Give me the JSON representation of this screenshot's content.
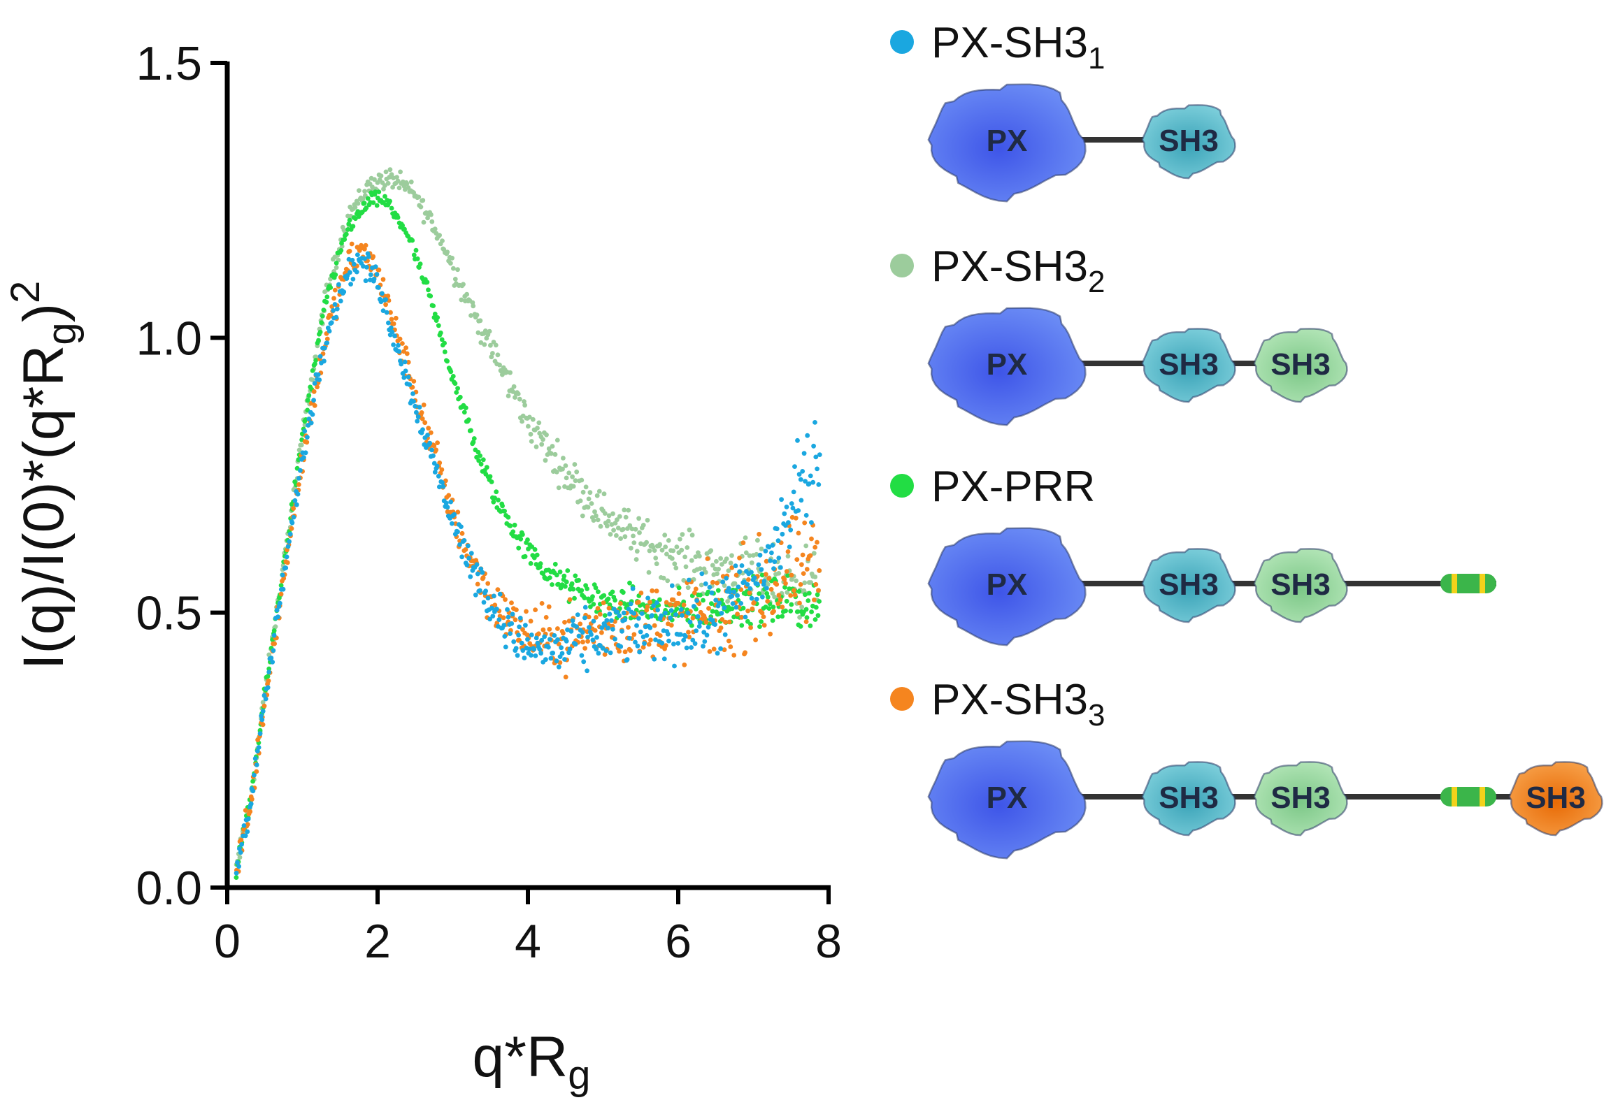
{
  "chart_data": {
    "type": "scatter",
    "title": "",
    "xlabel": "q*R",
    "xlabel_sub": "g",
    "ylabel": "I(q)/I(0)*(q*R",
    "ylabel_sub": "g",
    "ylabel_tail": ")",
    "ylabel_sup": "2",
    "xlim": [
      0,
      8
    ],
    "ylim": [
      0,
      1.5
    ],
    "xticks": [
      "0",
      "2",
      "4",
      "6",
      "8"
    ],
    "yticks": [
      "0.0",
      "0.5",
      "1.0",
      "1.5"
    ],
    "series": [
      {
        "name": "PX-SH3",
        "sub": "1",
        "color": "#1aa7e0",
        "noise": 0.022,
        "x": [
          0.1,
          0.3,
          0.5,
          0.7,
          1.0,
          1.3,
          1.6,
          1.8,
          2.0,
          2.2,
          2.5,
          2.8,
          3.0,
          3.2,
          3.5,
          3.8,
          4.0,
          4.3,
          4.6,
          5.0,
          5.5,
          6.0,
          6.5,
          7.0,
          7.3,
          7.6,
          7.9
        ],
        "y": [
          0.02,
          0.15,
          0.34,
          0.52,
          0.78,
          1.0,
          1.12,
          1.14,
          1.1,
          1.01,
          0.88,
          0.75,
          0.67,
          0.6,
          0.52,
          0.46,
          0.44,
          0.43,
          0.44,
          0.46,
          0.47,
          0.48,
          0.49,
          0.55,
          0.62,
          0.72,
          0.8
        ]
      },
      {
        "name": "PX-SH3",
        "sub": "2",
        "color": "#9ccc9c",
        "noise": 0.016,
        "x": [
          0.1,
          0.3,
          0.5,
          0.7,
          1.0,
          1.3,
          1.6,
          1.9,
          2.2,
          2.5,
          2.8,
          3.1,
          3.4,
          3.7,
          4.0,
          4.3,
          4.6,
          5.0,
          5.5,
          6.0,
          6.5,
          7.0,
          7.5,
          7.9
        ],
        "y": [
          0.02,
          0.15,
          0.35,
          0.54,
          0.82,
          1.07,
          1.22,
          1.28,
          1.29,
          1.26,
          1.19,
          1.1,
          1.01,
          0.93,
          0.85,
          0.79,
          0.74,
          0.68,
          0.63,
          0.6,
          0.58,
          0.57,
          0.56,
          0.55
        ]
      },
      {
        "name": "PX-PRR",
        "sub": "",
        "color": "#22dd44",
        "noise": 0.012,
        "x": [
          0.1,
          0.3,
          0.5,
          0.7,
          1.0,
          1.3,
          1.6,
          1.9,
          2.1,
          2.4,
          2.7,
          3.0,
          3.3,
          3.6,
          3.9,
          4.2,
          4.5,
          5.0,
          5.5,
          6.0,
          6.5,
          7.0,
          7.5,
          7.9
        ],
        "y": [
          0.02,
          0.15,
          0.35,
          0.54,
          0.82,
          1.06,
          1.2,
          1.25,
          1.25,
          1.19,
          1.07,
          0.93,
          0.8,
          0.7,
          0.63,
          0.58,
          0.55,
          0.52,
          0.51,
          0.5,
          0.51,
          0.52,
          0.52,
          0.51
        ]
      },
      {
        "name": "PX-SH3",
        "sub": "3",
        "color": "#f5851f",
        "noise": 0.026,
        "x": [
          0.1,
          0.3,
          0.5,
          0.7,
          1.0,
          1.3,
          1.6,
          1.8,
          2.0,
          2.2,
          2.5,
          2.8,
          3.0,
          3.2,
          3.5,
          3.8,
          4.0,
          4.3,
          4.6,
          5.0,
          5.5,
          6.0,
          6.5,
          7.0,
          7.3,
          7.6,
          7.9
        ],
        "y": [
          0.02,
          0.15,
          0.34,
          0.52,
          0.78,
          1.0,
          1.13,
          1.16,
          1.12,
          1.03,
          0.9,
          0.77,
          0.68,
          0.61,
          0.53,
          0.48,
          0.46,
          0.45,
          0.46,
          0.47,
          0.48,
          0.49,
          0.5,
          0.53,
          0.55,
          0.57,
          0.57
        ]
      }
    ],
    "legend_position": "right"
  },
  "schematics": [
    {
      "domains": [
        {
          "label": "PX",
          "color": "#4a6cf0"
        },
        {
          "label": "SH3",
          "color": "#4fb8c8"
        }
      ],
      "prr": false,
      "sh3_3": false
    },
    {
      "domains": [
        {
          "label": "PX",
          "color": "#4a6cf0"
        },
        {
          "label": "SH3",
          "color": "#4fb8c8"
        },
        {
          "label": "SH3",
          "color": "#93d39a"
        }
      ],
      "prr": false,
      "sh3_3": false
    },
    {
      "domains": [
        {
          "label": "PX",
          "color": "#4a6cf0"
        },
        {
          "label": "SH3",
          "color": "#4fb8c8"
        },
        {
          "label": "SH3",
          "color": "#93d39a"
        }
      ],
      "prr": true,
      "sh3_3": false
    },
    {
      "domains": [
        {
          "label": "PX",
          "color": "#4a6cf0"
        },
        {
          "label": "SH3",
          "color": "#4fb8c8"
        },
        {
          "label": "SH3",
          "color": "#93d39a"
        },
        {
          "label": "SH3",
          "color": "#f07a12"
        }
      ],
      "prr": true,
      "sh3_3": true
    }
  ],
  "prr_colors": {
    "body": "#3bb54a",
    "band": "#f2d21b"
  },
  "linker_color": "#333333"
}
